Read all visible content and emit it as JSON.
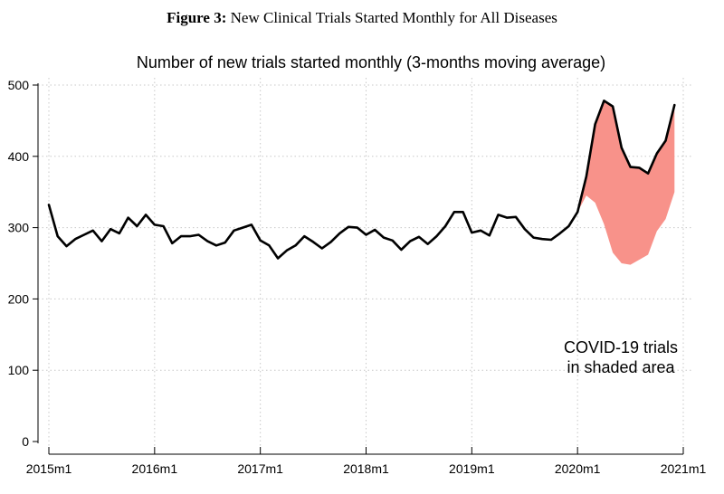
{
  "figure": {
    "label": "Figure 3:",
    "caption": "New Clinical Trials Started Monthly for All Diseases"
  },
  "chart_data": {
    "type": "line",
    "title": "Number of new trials started monthly (3-months moving average)",
    "xlabel": "",
    "ylabel": "",
    "ylim": [
      0,
      500
    ],
    "yticks": [
      0,
      100,
      200,
      300,
      400,
      500
    ],
    "xticks": [
      {
        "label": "2015m1",
        "x": 0
      },
      {
        "label": "2016m1",
        "x": 12
      },
      {
        "label": "2017m1",
        "x": 24
      },
      {
        "label": "2018m1",
        "x": 36
      },
      {
        "label": "2019m1",
        "x": 48
      },
      {
        "label": "2020m1",
        "x": 60
      },
      {
        "label": "2021m1",
        "x": 72
      }
    ],
    "x_start": "2015m1",
    "grid": true,
    "series": [
      {
        "name": "",
        "color": "#000000",
        "values": [
          332,
          288,
          274,
          284,
          290,
          296,
          281,
          298,
          292,
          314,
          302,
          318,
          304,
          302,
          278,
          288,
          288,
          290,
          281,
          275,
          279,
          296,
          300,
          304,
          282,
          275,
          257,
          268,
          275,
          288,
          280,
          271,
          280,
          292,
          301,
          300,
          290,
          297,
          286,
          282,
          269,
          281,
          287,
          277,
          288,
          302,
          322,
          322,
          293,
          296,
          289,
          318,
          314,
          315,
          298,
          286,
          284,
          283,
          292,
          302,
          322,
          372,
          445,
          478,
          470,
          412,
          385,
          384,
          376,
          404,
          422,
          472
        ]
      }
    ],
    "shaded_area": {
      "name": "COVID-19 trials",
      "color": "#f8928a",
      "start_index": 60,
      "lower_values": [
        322,
        345,
        335,
        305,
        265,
        250,
        248,
        255,
        262,
        295,
        312,
        350
      ]
    },
    "annotation": [
      "COVID-19 trials",
      "in shaded area"
    ]
  }
}
